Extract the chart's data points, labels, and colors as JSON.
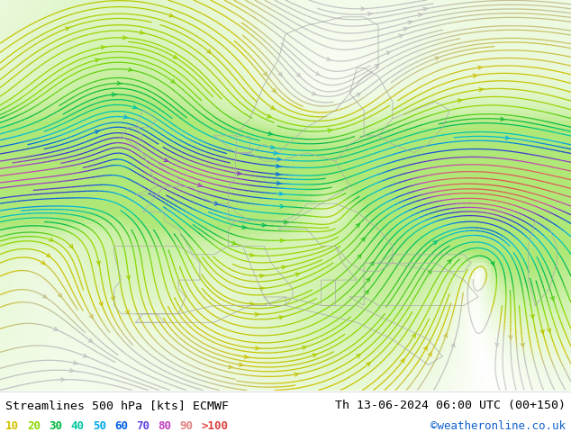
{
  "title_left": "Streamlines 500 hPa [kts] ECMWF",
  "title_right": "Th 13-06-2024 06:00 UTC (00+150)",
  "credit": "©weatheronline.co.uk",
  "bg_color": "#b0e878",
  "low_speed_bg": "#e8e8f0",
  "border_color": "#aaaaaa",
  "legend_labels": [
    "10",
    "20",
    "30",
    "40",
    "50",
    "60",
    "70",
    "80",
    "90",
    ">100"
  ],
  "legend_colors": [
    "#d0c000",
    "#88d800",
    "#00b840",
    "#00c8a0",
    "#00a8e8",
    "#0060e0",
    "#6040e0",
    "#c040c0",
    "#e08080",
    "#e04040"
  ],
  "figsize": [
    6.34,
    4.9
  ],
  "dpi": 100,
  "xlim": [
    -25,
    55
  ],
  "ylim": [
    27,
    73
  ]
}
